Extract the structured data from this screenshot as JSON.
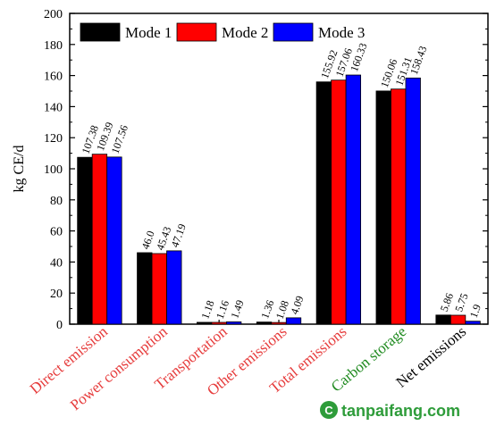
{
  "chart_data": {
    "type": "bar",
    "ylabel": "kg CE/d",
    "ylim": [
      0,
      200
    ],
    "yticks": [
      0,
      20,
      40,
      60,
      80,
      100,
      120,
      140,
      160,
      180,
      200
    ],
    "legend_position": "top-left",
    "categories": [
      "Direct emission",
      "Power consumption",
      "Transportation",
      "Other emissions",
      "Total emissions",
      "Carbon storage",
      "Net emissions"
    ],
    "category_colors": [
      "#e63b3b",
      "#e63b3b",
      "#e63b3b",
      "#e63b3b",
      "#e63b3b",
      "#1f8a1f",
      "#000000"
    ],
    "series": [
      {
        "name": "Mode 1",
        "color": "#000000",
        "values": [
          107.38,
          46.0,
          1.18,
          1.36,
          155.92,
          150.06,
          5.86
        ],
        "labels": [
          "107.38",
          "46.0",
          "1.18",
          "1.36",
          "155.92",
          "150.06",
          "5.86"
        ]
      },
      {
        "name": "Mode 2",
        "color": "#ff0000",
        "values": [
          109.39,
          45.43,
          1.16,
          1.08,
          157.06,
          151.31,
          5.75
        ],
        "labels": [
          "109.39",
          "45.43",
          "1.16",
          "1.08",
          "157.06",
          "151.31",
          "5.75"
        ]
      },
      {
        "name": "Mode 3",
        "color": "#0000ff",
        "values": [
          107.56,
          47.19,
          1.49,
          4.09,
          160.33,
          158.43,
          1.9
        ],
        "labels": [
          "107.56",
          "47.19",
          "1.49",
          "4.09",
          "160.33",
          "158.43",
          "1.9"
        ]
      }
    ]
  },
  "watermark": {
    "text": "tanpaifang.com",
    "color": "#2e9c3a"
  }
}
